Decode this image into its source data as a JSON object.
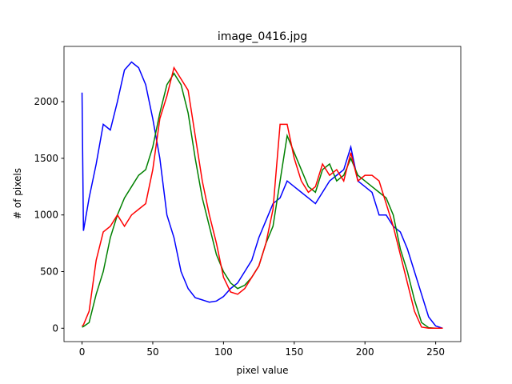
{
  "chart_data": {
    "type": "line",
    "title": "image_0416.jpg",
    "x_label": "pixel value",
    "y_label": "# of pixels",
    "x": [
      0,
      1,
      5,
      10,
      15,
      20,
      25,
      30,
      35,
      40,
      45,
      50,
      55,
      60,
      65,
      70,
      75,
      80,
      85,
      90,
      95,
      100,
      105,
      110,
      115,
      120,
      125,
      130,
      135,
      140,
      145,
      150,
      155,
      160,
      165,
      170,
      175,
      180,
      185,
      190,
      195,
      200,
      205,
      210,
      215,
      220,
      225,
      230,
      235,
      240,
      245,
      250,
      255
    ],
    "series": [
      {
        "name": "b",
        "color": "blue",
        "values": [
          2080,
          860,
          1150,
          1450,
          1800,
          1750,
          2000,
          2280,
          2350,
          2300,
          2150,
          1850,
          1500,
          1000,
          800,
          500,
          350,
          270,
          250,
          230,
          240,
          280,
          350,
          400,
          500,
          600,
          800,
          950,
          1100,
          1150,
          1300,
          1250,
          1200,
          1150,
          1100,
          1200,
          1300,
          1350,
          1400,
          1600,
          1300,
          1250,
          1200,
          1000,
          1000,
          900,
          850,
          700,
          500,
          300,
          100,
          20,
          0
        ]
      },
      {
        "name": "g",
        "color": "green",
        "values": [
          10,
          15,
          50,
          300,
          500,
          800,
          1000,
          1150,
          1250,
          1350,
          1400,
          1600,
          1900,
          2150,
          2250,
          2150,
          1900,
          1500,
          1150,
          900,
          650,
          500,
          400,
          350,
          380,
          450,
          550,
          750,
          900,
          1300,
          1700,
          1550,
          1400,
          1250,
          1200,
          1400,
          1450,
          1300,
          1350,
          1500,
          1350,
          1300,
          1250,
          1200,
          1150,
          1000,
          700,
          500,
          250,
          50,
          5,
          0,
          0
        ]
      },
      {
        "name": "r",
        "color": "red",
        "values": [
          20,
          30,
          150,
          600,
          850,
          900,
          1000,
          900,
          1000,
          1050,
          1100,
          1400,
          1850,
          2050,
          2300,
          2200,
          2100,
          1700,
          1300,
          1000,
          750,
          450,
          320,
          300,
          350,
          450,
          550,
          750,
          1050,
          1800,
          1800,
          1500,
          1300,
          1200,
          1250,
          1450,
          1350,
          1400,
          1300,
          1550,
          1300,
          1350,
          1350,
          1300,
          1100,
          900,
          650,
          400,
          150,
          10,
          0,
          0,
          0
        ]
      }
    ],
    "xlim": [
      -12.75,
      267.75
    ],
    "xticks": [
      0,
      50,
      100,
      150,
      200,
      250
    ],
    "ylim": [
      -118,
      2488
    ],
    "yticks": [
      0,
      500,
      1000,
      1500,
      2000
    ]
  }
}
